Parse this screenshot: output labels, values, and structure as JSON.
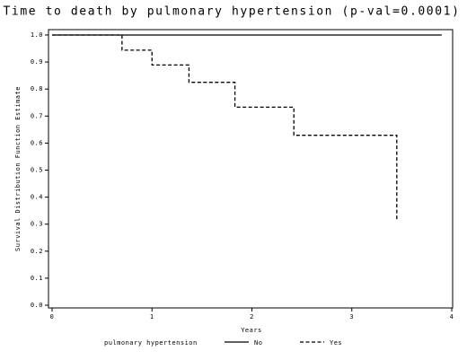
{
  "chart_data": {
    "type": "step",
    "title": "Time to death by pulmonary hypertension (p-val=0.0001)",
    "x_label": "Years",
    "y_label": "Survival Distribution Function Estimate",
    "legend_title": "pulmonary hypertension",
    "legend": "bottom",
    "xlim": [
      0,
      4
    ],
    "ylim": [
      0,
      1
    ],
    "xticks": [
      0,
      1,
      2,
      3,
      4
    ],
    "yticks": [
      {
        "value": 0,
        "label": "0.0"
      },
      {
        "value": 0.1,
        "label": "0.1"
      },
      {
        "value": 0.2,
        "label": "0.2"
      },
      {
        "value": 0.3,
        "label": "0.3"
      },
      {
        "value": 0.4,
        "label": "0.4"
      },
      {
        "value": 0.5,
        "label": "0.5"
      },
      {
        "value": 0.6,
        "label": "0.6"
      },
      {
        "value": 0.7,
        "label": "0.7"
      },
      {
        "value": 0.8,
        "label": "0.8"
      },
      {
        "value": 0.9,
        "label": "0.9"
      },
      {
        "value": 1,
        "label": "1.0"
      }
    ],
    "series": [
      {
        "name": "No",
        "color": "#000000",
        "dash": false,
        "x": [
          0,
          3.9
        ],
        "values": [
          1,
          1
        ]
      },
      {
        "name": "Yes",
        "color": "#000000",
        "dash": true,
        "x": [
          0,
          0.7,
          1.0,
          1.37,
          1.83,
          2.42,
          3.45
        ],
        "values": [
          1,
          0.944,
          0.889,
          0.825,
          0.733,
          0.629,
          0.314
        ]
      }
    ]
  }
}
